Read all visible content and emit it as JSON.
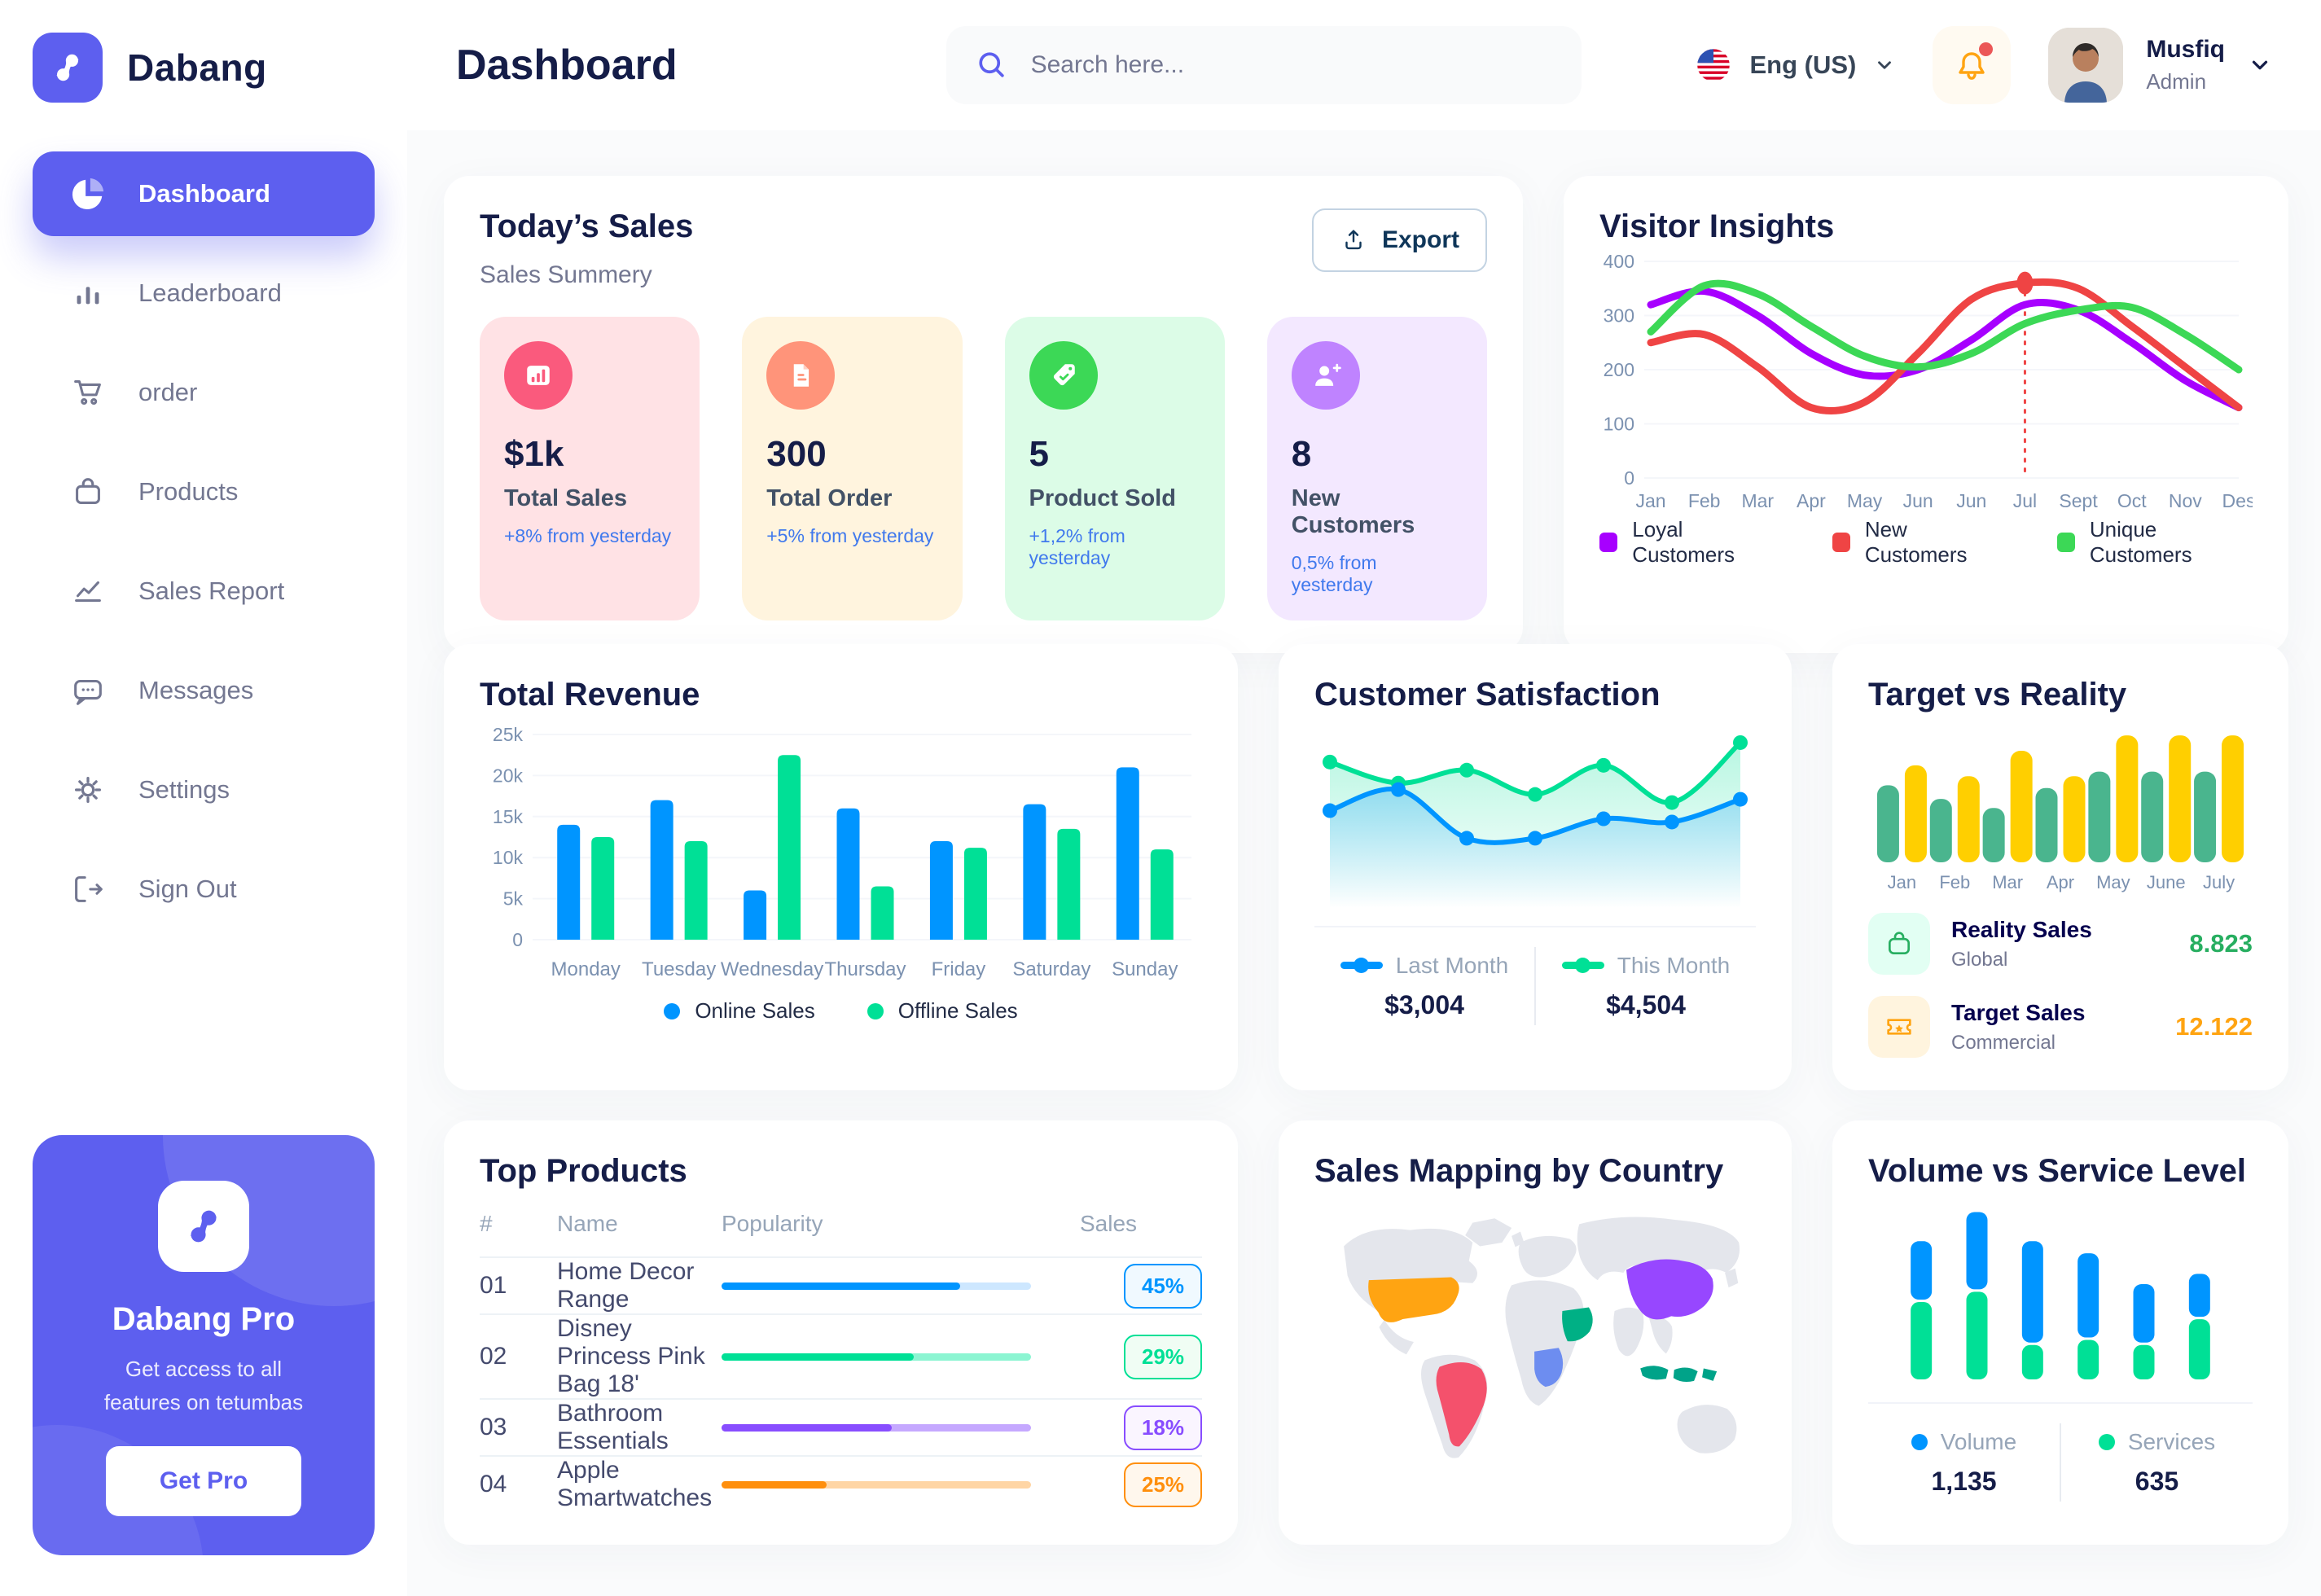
{
  "app": {
    "brand": "Dabang"
  },
  "header": {
    "title": "Dashboard",
    "search_placeholder": "Search here...",
    "language": "Eng (US)",
    "user": {
      "name": "Musfiq",
      "role": "Admin"
    }
  },
  "sidebar": {
    "items": [
      {
        "label": "Dashboard",
        "active": true
      },
      {
        "label": "Leaderboard"
      },
      {
        "label": "order"
      },
      {
        "label": "Products"
      },
      {
        "label": "Sales Report"
      },
      {
        "label": "Messages"
      },
      {
        "label": "Settings"
      },
      {
        "label": "Sign Out"
      }
    ],
    "pro": {
      "title": "Dabang Pro",
      "line1": "Get access to all",
      "line2": "features on tetumbas",
      "button": "Get Pro"
    }
  },
  "today_sales": {
    "title": "Today’s Sales",
    "subtitle": "Sales Summery",
    "export_label": "Export",
    "cards": [
      {
        "value": "$1k",
        "label": "Total Sales",
        "delta": "+8% from yesterday",
        "bg": "#FFE2E5",
        "icon_bg": "#FA5A7D"
      },
      {
        "value": "300",
        "label": "Total Order",
        "delta": "+5% from yesterday",
        "bg": "#FFF4DE",
        "icon_bg": "#FF947A"
      },
      {
        "value": "5",
        "label": "Product Sold",
        "delta": "+1,2% from yesterday",
        "bg": "#DCFCE7",
        "icon_bg": "#3CD856"
      },
      {
        "value": "8",
        "label": "New Customers",
        "delta": "0,5% from yesterday",
        "bg": "#F3E8FF",
        "icon_bg": "#BF83FF"
      }
    ]
  },
  "chart_data": [
    {
      "id": "visitor_insights",
      "type": "line",
      "title": "Visitor Insights",
      "x": [
        "Jan",
        "Feb",
        "Mar",
        "Apr",
        "May",
        "Jun",
        "Jun",
        "Jul",
        "Sept",
        "Oct",
        "Nov",
        "Des"
      ],
      "ylim": [
        0,
        400
      ],
      "yticks": [
        0,
        100,
        200,
        300,
        400
      ],
      "grid": true,
      "legend_position": "bottom",
      "series": [
        {
          "name": "Loyal Customers",
          "color": "#A700FF",
          "values": [
            320,
            345,
            300,
            230,
            190,
            200,
            255,
            320,
            310,
            250,
            180,
            130
          ]
        },
        {
          "name": "New Customers",
          "color": "#EF4444",
          "values": [
            250,
            265,
            205,
            130,
            140,
            230,
            330,
            360,
            350,
            280,
            205,
            130
          ]
        },
        {
          "name": "Unique Customers",
          "color": "#3CD856",
          "values": [
            270,
            355,
            340,
            280,
            225,
            205,
            230,
            285,
            310,
            315,
            265,
            200
          ]
        }
      ],
      "marker": {
        "x_index": 7,
        "value": 360,
        "color": "#EF4444"
      }
    },
    {
      "id": "total_revenue",
      "type": "bar",
      "title": "Total Revenue",
      "categories": [
        "Monday",
        "Tuesday",
        "Wednesday",
        "Thursday",
        "Friday",
        "Saturday",
        "Sunday"
      ],
      "ylim": [
        0,
        25
      ],
      "yticks": [
        0,
        5,
        10,
        15,
        20,
        25
      ],
      "ytick_labels": [
        "0",
        "5k",
        "10k",
        "15k",
        "20k",
        "25k"
      ],
      "grid": true,
      "legend_position": "bottom",
      "series": [
        {
          "name": "Online Sales",
          "color": "#0095FF",
          "values": [
            14,
            17,
            6,
            16,
            12,
            16.5,
            21
          ]
        },
        {
          "name": "Offline Sales",
          "color": "#00E096",
          "values": [
            12.5,
            12,
            22.5,
            6.5,
            11.2,
            13.5,
            11
          ]
        }
      ]
    },
    {
      "id": "customer_satisfaction",
      "type": "area",
      "title": "Customer Satisfaction",
      "ylim": [
        0,
        100
      ],
      "grid": false,
      "legend_position": "bottom",
      "series": [
        {
          "name": "Last Month",
          "color": "#0095FF",
          "total": "$3,004",
          "values": [
            55,
            68,
            38,
            38,
            50,
            48,
            62
          ]
        },
        {
          "name": "This Month",
          "color": "#00E096",
          "total": "$4,504",
          "values": [
            85,
            72,
            80,
            65,
            83,
            60,
            97
          ]
        }
      ]
    },
    {
      "id": "target_vs_reality",
      "type": "bar",
      "title": "Target vs Reality",
      "categories": [
        "Jan",
        "Feb",
        "Mar",
        "Apr",
        "May",
        "June",
        "July"
      ],
      "ylim": [
        0,
        15
      ],
      "grid": false,
      "legend_position": "bottom",
      "series": [
        {
          "name": "Reality Sales",
          "color": "#4AB58E",
          "values": [
            8.5,
            7,
            6,
            8.2,
            10,
            10,
            10
          ]
        },
        {
          "name": "Target Sales",
          "color": "#FFCF00",
          "values": [
            10.7,
            9.5,
            12.3,
            9.5,
            14,
            14,
            14
          ]
        }
      ],
      "legend": [
        {
          "label": "Reality Sales",
          "sub": "Global",
          "value": "8.823",
          "value_color": "#27AE60",
          "icon_bg": "#E2FFF3",
          "icon_color": "#27AE60"
        },
        {
          "label": "Target Sales",
          "sub": "Commercial",
          "value": "12.122",
          "value_color": "#FFA412",
          "icon_bg": "#FFF4DE",
          "icon_color": "#FFA412"
        }
      ]
    },
    {
      "id": "volume_service",
      "type": "stacked-bar",
      "title": "Volume vs Service Level",
      "ylim": [
        0,
        100
      ],
      "grid": false,
      "legend_position": "bottom",
      "series": [
        {
          "name": "Volume",
          "color": "#0095FF",
          "total": "1,135",
          "values": [
            34,
            45,
            59,
            49,
            34,
            25
          ]
        },
        {
          "name": "Services",
          "color": "#00E096",
          "total": "635",
          "values": [
            45,
            51,
            20,
            23,
            20,
            35
          ]
        }
      ]
    },
    {
      "id": "sales_mapping",
      "type": "map",
      "title": "Sales Mapping by Country",
      "land_color": "#E4E6EC",
      "countries": [
        {
          "name": "United States",
          "color": "#FFA412"
        },
        {
          "name": "Brazil",
          "color": "#F4516C"
        },
        {
          "name": "DR Congo",
          "color": "#6D8DF0"
        },
        {
          "name": "Saudi Arabia",
          "color": "#00B085"
        },
        {
          "name": "China",
          "color": "#9747FF"
        },
        {
          "name": "Indonesia",
          "color": "#00A389"
        }
      ]
    }
  ],
  "top_products": {
    "title": "Top Products",
    "columns": [
      "#",
      "Name",
      "Popularity",
      "Sales"
    ],
    "rows": [
      {
        "num": "01",
        "name": "Home Decor Range",
        "popularity": 77,
        "sales": "45%",
        "color": "#0095FF",
        "track": "#CDE7FF",
        "badge_bg": "#F0F9FF"
      },
      {
        "num": "02",
        "name": "Disney Princess Pink Bag 18'",
        "popularity": 62,
        "sales": "29%",
        "color": "#00E096",
        "track": "#8CF5D2",
        "badge_bg": "#F0FDF4"
      },
      {
        "num": "03",
        "name": "Bathroom Essentials",
        "popularity": 55,
        "sales": "18%",
        "color": "#884DFF",
        "track": "#C5A8FF",
        "badge_bg": "#FAF5FF"
      },
      {
        "num": "04",
        "name": "Apple Smartwatches",
        "popularity": 34,
        "sales": "25%",
        "color": "#FF8F0D",
        "track": "#FFD5A4",
        "badge_bg": "#FFF7ED"
      }
    ]
  }
}
